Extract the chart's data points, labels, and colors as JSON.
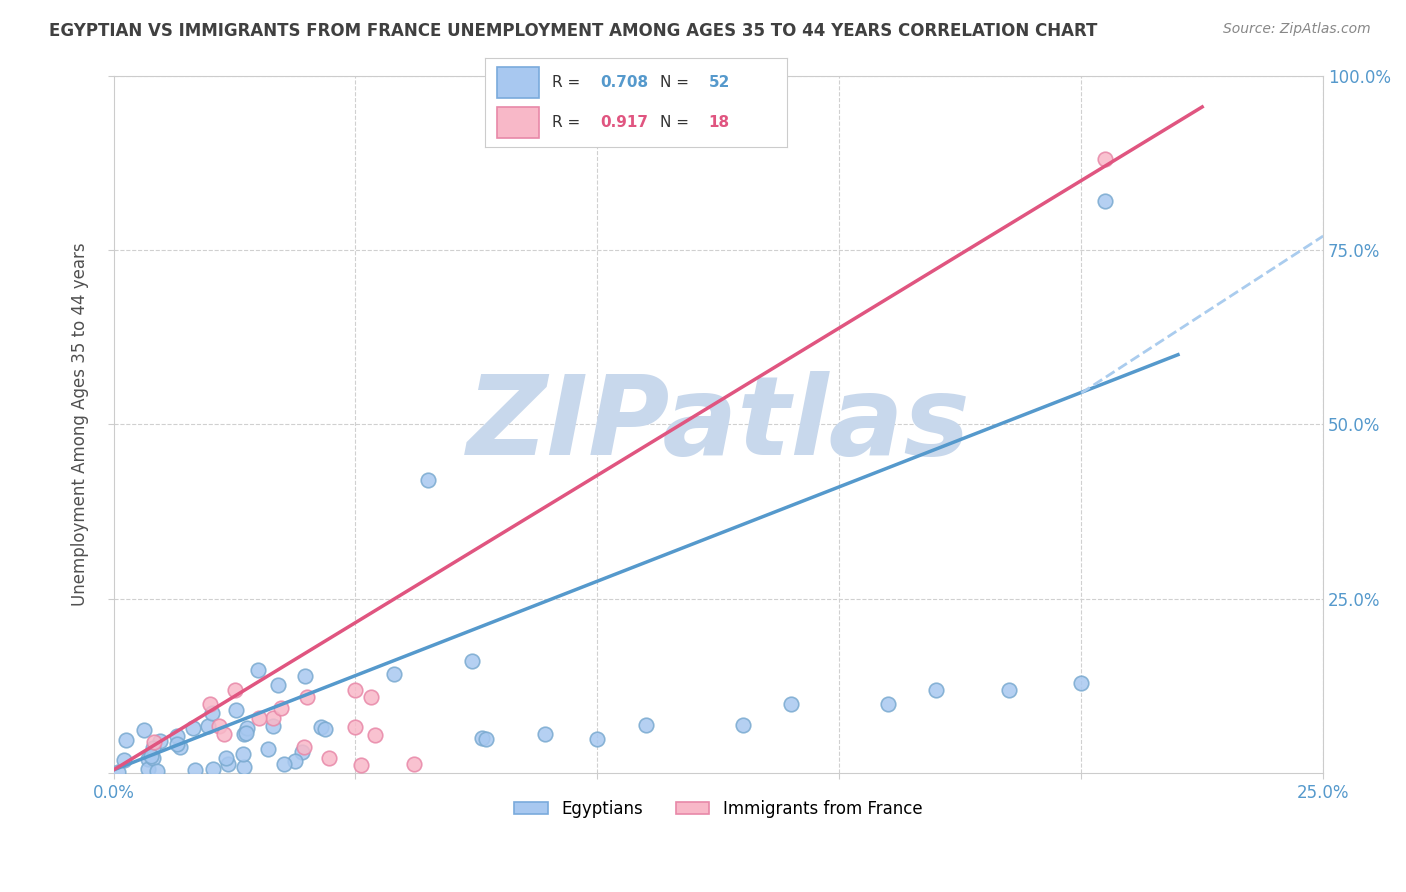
{
  "title": "EGYPTIAN VS IMMIGRANTS FROM FRANCE UNEMPLOYMENT AMONG AGES 35 TO 44 YEARS CORRELATION CHART",
  "source": "Source: ZipAtlas.com",
  "ylabel": "Unemployment Among Ages 35 to 44 years",
  "xlim": [
    0.0,
    0.25
  ],
  "ylim": [
    0.0,
    1.0
  ],
  "xticks": [
    0.0,
    0.05,
    0.1,
    0.15,
    0.2,
    0.25
  ],
  "yticks": [
    0.0,
    0.25,
    0.5,
    0.75,
    1.0
  ],
  "ytick_labels": [
    "",
    "25.0%",
    "50.0%",
    "75.0%",
    "100.0%"
  ],
  "xtick_labels": [
    "0.0%",
    "",
    "",
    "",
    "",
    "25.0%"
  ],
  "legend_top": [
    {
      "R": "0.708",
      "N": "52",
      "fill": "#a8c8f0",
      "edge": "#7aaadc"
    },
    {
      "R": "0.917",
      "N": "18",
      "fill": "#f8b8c8",
      "edge": "#e888a8"
    }
  ],
  "legend_bottom": [
    "Egyptians",
    "Immigrants from France"
  ],
  "legend_bottom_colors": [
    "#a8c8f0",
    "#f8b8c8"
  ],
  "legend_bottom_edges": [
    "#7aaadc",
    "#e888a8"
  ],
  "background_color": "#ffffff",
  "grid_color": "#d0d0d0",
  "watermark_text": "ZIPatlas",
  "watermark_color": "#c8d8ec",
  "title_color": "#404040",
  "axis_label_color": "#505050",
  "tick_color": "#5599cc",
  "blue_scatter_color_fill": "#a8c8f0",
  "blue_scatter_color_edge": "#7aaad0",
  "pink_scatter_color_fill": "#f8b8c8",
  "pink_scatter_color_edge": "#e888a8",
  "blue_line_color": "#5599cc",
  "pink_line_color": "#e05580",
  "blue_dashed_color": "#aaccee",
  "R_value_blue": "0.708",
  "N_value_blue": "52",
  "R_value_pink": "0.917",
  "N_value_pink": "18"
}
